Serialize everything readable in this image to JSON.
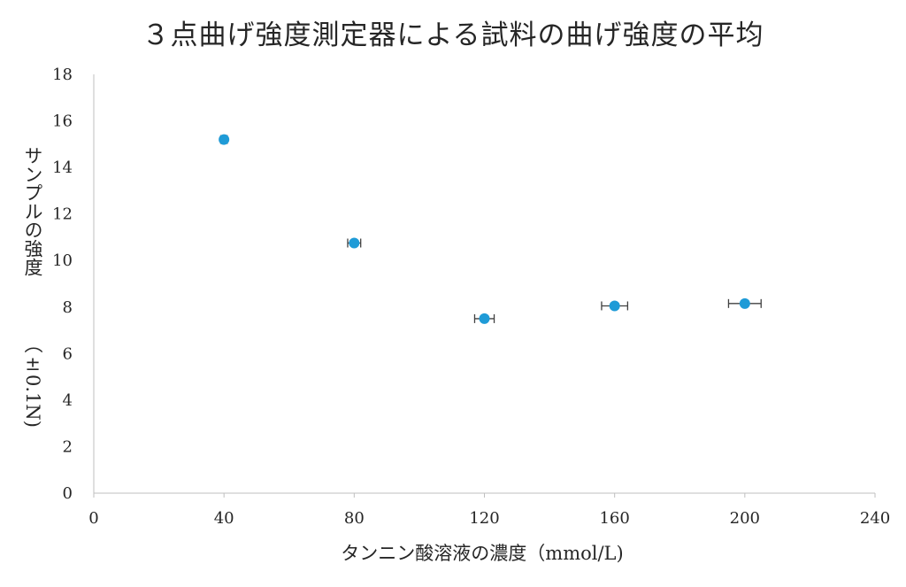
{
  "chart_data": {
    "type": "scatter",
    "title": "３点曲げ強度測定器による試料の曲げ強度の平均",
    "xlabel": "タンニン酸溶液の濃度（mmol/L)",
    "ylabel": "サンプルの強度",
    "ylabel_unit": "（±0.1N)",
    "xlim": [
      0,
      240
    ],
    "ylim": [
      0,
      18
    ],
    "x_ticks": [
      0,
      40,
      80,
      120,
      160,
      200,
      240
    ],
    "y_ticks": [
      0,
      2,
      4,
      6,
      8,
      10,
      12,
      14,
      16,
      18
    ],
    "grid": false,
    "legend": "none",
    "marker_color": "#1f9bd7",
    "points": [
      {
        "x": 40,
        "y": 15.2,
        "x_err": 1
      },
      {
        "x": 80,
        "y": 10.75,
        "x_err": 2
      },
      {
        "x": 120,
        "y": 7.5,
        "x_err": 3
      },
      {
        "x": 160,
        "y": 8.05,
        "x_err": 4
      },
      {
        "x": 200,
        "y": 8.15,
        "x_err": 5
      }
    ]
  }
}
